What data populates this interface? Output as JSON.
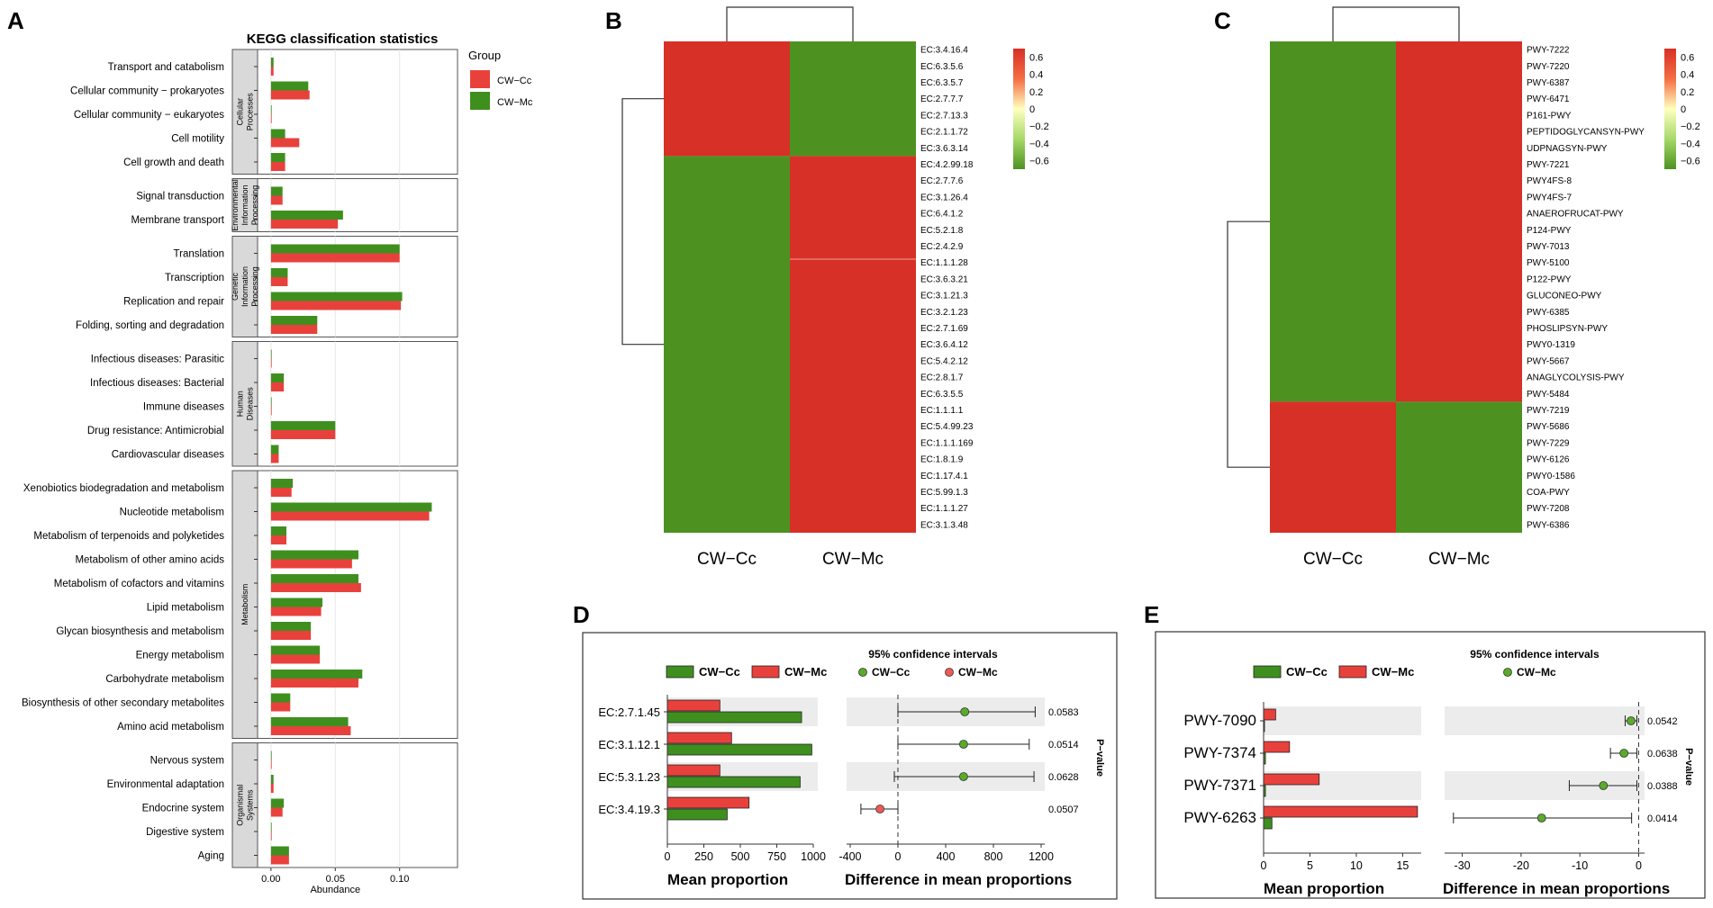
{
  "colors": {
    "cc_bar": "#e8413c",
    "mc_bar": "#3f8f1f",
    "heat_red": "#d73027",
    "heat_green": "#4d9221",
    "strip": "#d9d9d9",
    "band": "#ececec",
    "grid": "#e6e6e6"
  },
  "chart_data": [
    {
      "panel": "A",
      "type": "bar",
      "orientation": "horizontal",
      "title": "KEGG classification statistics",
      "xlabel": "Abundance",
      "ylabel": "",
      "xlim": [
        -0.03,
        0.145
      ],
      "xticks": [
        0.0,
        0.05,
        0.1
      ],
      "tick_labels": [
        "0.00",
        "0.05",
        "0.10"
      ],
      "grid": true,
      "legend": {
        "title": "Group",
        "position": "right",
        "entries": [
          "CW−Cc",
          "CW−Mc"
        ]
      },
      "series_names": {
        "cc": "CW−Cc",
        "mc": "CW−Mc"
      },
      "groups": [
        {
          "label": "Cellular Processes",
          "label_lines": [
            "Cellular",
            "Processes"
          ],
          "categories": [
            {
              "name": "Transport and catabolism",
              "mc": 0.002,
              "cc": 0.002
            },
            {
              "name": "Cellular community − prokaryotes",
              "mc": 0.029,
              "cc": 0.03
            },
            {
              "name": "Cellular community − eukaryotes",
              "mc": 0.0,
              "cc": 0.0
            },
            {
              "name": "Cell motility",
              "mc": 0.011,
              "cc": 0.022
            },
            {
              "name": "Cell growth and death",
              "mc": 0.011,
              "cc": 0.011
            }
          ]
        },
        {
          "label": "Environmental Information Processing",
          "label_lines": [
            "Environmental",
            "Information",
            "Processing"
          ],
          "categories": [
            {
              "name": "Signal transduction",
              "mc": 0.009,
              "cc": 0.009
            },
            {
              "name": "Membrane transport",
              "mc": 0.056,
              "cc": 0.052
            }
          ]
        },
        {
          "label": "Genetic Information Processing",
          "label_lines": [
            "Genetic",
            "Information",
            "Processing"
          ],
          "categories": [
            {
              "name": "Translation",
              "mc": 0.1,
              "cc": 0.1
            },
            {
              "name": "Transcription",
              "mc": 0.013,
              "cc": 0.013
            },
            {
              "name": "Replication and repair",
              "mc": 0.102,
              "cc": 0.101
            },
            {
              "name": "Folding, sorting and degradation",
              "mc": 0.036,
              "cc": 0.036
            }
          ]
        },
        {
          "label": "Human Diseases",
          "label_lines": [
            "Human",
            "Diseases"
          ],
          "categories": [
            {
              "name": "Infectious diseases: Parasitic",
              "mc": 0.0,
              "cc": 0.0
            },
            {
              "name": "Infectious diseases: Bacterial",
              "mc": 0.01,
              "cc": 0.01
            },
            {
              "name": "Immune diseases",
              "mc": 0.0,
              "cc": 0.0
            },
            {
              "name": "Drug resistance: Antimicrobial",
              "mc": 0.05,
              "cc": 0.05
            },
            {
              "name": "Cardiovascular diseases",
              "mc": 0.006,
              "cc": 0.006
            }
          ]
        },
        {
          "label": "Metabolism",
          "label_lines": [
            "Metabolism"
          ],
          "categories": [
            {
              "name": "Xenobiotics biodegradation and metabolism",
              "mc": 0.017,
              "cc": 0.016
            },
            {
              "name": "Nucleotide metabolism",
              "mc": 0.125,
              "cc": 0.123
            },
            {
              "name": "Metabolism of terpenoids and polyketides",
              "mc": 0.012,
              "cc": 0.012
            },
            {
              "name": "Metabolism of other amino acids",
              "mc": 0.068,
              "cc": 0.063
            },
            {
              "name": "Metabolism of cofactors and vitamins",
              "mc": 0.068,
              "cc": 0.07
            },
            {
              "name": "Lipid metabolism",
              "mc": 0.04,
              "cc": 0.039
            },
            {
              "name": "Glycan biosynthesis and metabolism",
              "mc": 0.031,
              "cc": 0.031
            },
            {
              "name": "Energy metabolism",
              "mc": 0.038,
              "cc": 0.038
            },
            {
              "name": "Carbohydrate metabolism",
              "mc": 0.071,
              "cc": 0.068
            },
            {
              "name": "Biosynthesis of other secondary metabolites",
              "mc": 0.015,
              "cc": 0.015
            },
            {
              "name": "Amino acid metabolism",
              "mc": 0.06,
              "cc": 0.062
            }
          ]
        },
        {
          "label": "Organismal Systems",
          "label_lines": [
            "Organismal",
            "Systems"
          ],
          "categories": [
            {
              "name": "Nervous system",
              "mc": 0.0,
              "cc": 0.0
            },
            {
              "name": "Environmental adaptation",
              "mc": 0.002,
              "cc": 0.002
            },
            {
              "name": "Endocrine system",
              "mc": 0.01,
              "cc": 0.009
            },
            {
              "name": "Digestive system",
              "mc": 0.0,
              "cc": 0.0
            },
            {
              "name": "Aging",
              "mc": 0.014,
              "cc": 0.014
            }
          ]
        }
      ]
    },
    {
      "panel": "B",
      "type": "heatmap",
      "columns": [
        "CW−Cc",
        "CW−Mc"
      ],
      "rows": [
        "EC:3.4.16.4",
        "EC:6.3.5.6",
        "EC:6.3.5.7",
        "EC:2.7.7.7",
        "EC:2.7.13.3",
        "EC:2.1.1.72",
        "EC:3.6.3.14",
        "EC:4.2.99.18",
        "EC:2.7.7.6",
        "EC:3.1.26.4",
        "EC:6.4.1.2",
        "EC:5.2.1.8",
        "EC:2.4.2.9",
        "EC:1.1.1.28",
        "EC:3.6.3.21",
        "EC:3.1.21.3",
        "EC:3.2.1.23",
        "EC:2.7.1.69",
        "EC:3.6.4.12",
        "EC:5.4.2.12",
        "EC:2.8.1.7",
        "EC:6.3.5.5",
        "EC:1.1.1.1",
        "EC:5.4.99.23",
        "EC:1.1.1.169",
        "EC:1.8.1.9",
        "EC:1.17.4.1",
        "EC:5.99.1.3",
        "EC:1.1.1.27",
        "EC:3.1.3.48"
      ],
      "split_after": 7,
      "values_top": [
        0.7,
        -0.7
      ],
      "values_bottom": [
        -0.7,
        0.7
      ],
      "colorbar": {
        "ticks": [
          0.6,
          0.4,
          0.2,
          0,
          -0.2,
          -0.4,
          -0.6
        ],
        "tick_labels": [
          "0.6",
          "0.4",
          "0.2",
          "0",
          "−0.2",
          "−0.4",
          "−0.6"
        ]
      }
    },
    {
      "panel": "C",
      "type": "heatmap",
      "columns": [
        "CW−Cc",
        "CW−Mc"
      ],
      "rows": [
        "PWY-7222",
        "PWY-7220",
        "PWY-6387",
        "PWY-6471",
        "P161-PWY",
        "PEPTIDOGLYCANSYN-PWY",
        "UDPNAGSYN-PWY",
        "PWY-7221",
        "PWY4FS-8",
        "PWY4FS-7",
        "ANAEROFRUCAT-PWY",
        "P124-PWY",
        "PWY-7013",
        "PWY-5100",
        "P122-PWY",
        "GLUCONEO-PWY",
        "PWY-6385",
        "PHOSLIPSYN-PWY",
        "PWY0-1319",
        "PWY-5667",
        "ANAGLYCOLYSIS-PWY",
        "PWY-5484",
        "PWY-7219",
        "PWY-5686",
        "PWY-7229",
        "PWY-6126",
        "PWY0-1586",
        "COA-PWY",
        "PWY-7208",
        "PWY-6386"
      ],
      "split_after": 22,
      "values_top": [
        -0.7,
        0.7
      ],
      "values_bottom": [
        0.7,
        -0.7
      ],
      "colorbar": {
        "ticks": [
          0.6,
          0.4,
          0.2,
          0,
          -0.2,
          -0.4,
          -0.6
        ],
        "tick_labels": [
          "0.6",
          "0.4",
          "0.2",
          "0",
          "−0.2",
          "−0.4",
          "−0.6"
        ]
      }
    },
    {
      "panel": "D",
      "type": "bar",
      "subtype": "extended-error-bar",
      "features": [
        "EC:2.7.1.45",
        "EC:3.1.12.1",
        "EC:5.3.1.23",
        "EC:3.4.19.3"
      ],
      "legend_left": [
        "CW−Cc",
        "CW−Mc"
      ],
      "legend_right_title": "95% confidence intervals",
      "legend_right": [
        "CW−Cc",
        "CW−Mc"
      ],
      "mean_proportion": {
        "xlabel": "Mean proportion",
        "xlim": [
          0,
          1000
        ],
        "xticks": [
          0,
          250,
          500,
          750,
          1000
        ],
        "series": [
          {
            "name": "CW−Mc",
            "values": [
              360,
              440,
              360,
              560
            ]
          },
          {
            "name": "CW−Cc",
            "values": [
              920,
              990,
              910,
              410
            ]
          }
        ]
      },
      "difference": {
        "xlabel": "Difference in mean proportions",
        "xlim": [
          -430,
          1230
        ],
        "xticks": [
          -400,
          0,
          400,
          800,
          1200
        ],
        "estimate": [
          560,
          550,
          550,
          -150
        ],
        "ci_low": [
          0,
          0,
          -30,
          -310
        ],
        "ci_high": [
          1150,
          1100,
          1140,
          0
        ],
        "group": [
          "CW−Cc",
          "CW−Cc",
          "CW−Cc",
          "CW−Mc"
        ]
      },
      "p_values": [
        "0.0583",
        "0.0514",
        "0.0628",
        "0.0507"
      ],
      "p_label": "P−value"
    },
    {
      "panel": "E",
      "type": "bar",
      "subtype": "extended-error-bar",
      "features": [
        "PWY-7090",
        "PWY-7374",
        "PWY-7371",
        "PWY-6263"
      ],
      "legend_left": [
        "CW−Cc",
        "CW−Mc"
      ],
      "legend_right_title": "95% confidence intervals",
      "legend_right": [
        "CW−Mc"
      ],
      "mean_proportion": {
        "xlabel": "Mean proportion",
        "xlim": [
          0,
          17
        ],
        "xticks": [
          0,
          5,
          10,
          15
        ],
        "series": [
          {
            "name": "CW−Mc",
            "values": [
              1.3,
              2.8,
              6.0,
              16.6
            ]
          },
          {
            "name": "CW−Cc",
            "values": [
              0.1,
              0.2,
              0.2,
              0.9
            ]
          }
        ]
      },
      "difference": {
        "xlabel": "Difference in mean proportions",
        "xlim": [
          -33,
          1
        ],
        "xticks": [
          -30,
          -20,
          -10,
          0
        ],
        "estimate": [
          -1.3,
          -2.5,
          -6.0,
          -16.5
        ],
        "ci_low": [
          -2.3,
          -4.8,
          -11.8,
          -31.5
        ],
        "ci_high": [
          -0.3,
          -0.3,
          -0.3,
          -1.2
        ],
        "group": [
          "CW−Mc",
          "CW−Mc",
          "CW−Mc",
          "CW−Mc"
        ]
      },
      "p_values": [
        "0.0542",
        "0.0638",
        "0.0388",
        "0.0414"
      ],
      "p_label": "P−value"
    }
  ],
  "panel_letters": [
    "A",
    "B",
    "C",
    "D",
    "E"
  ]
}
